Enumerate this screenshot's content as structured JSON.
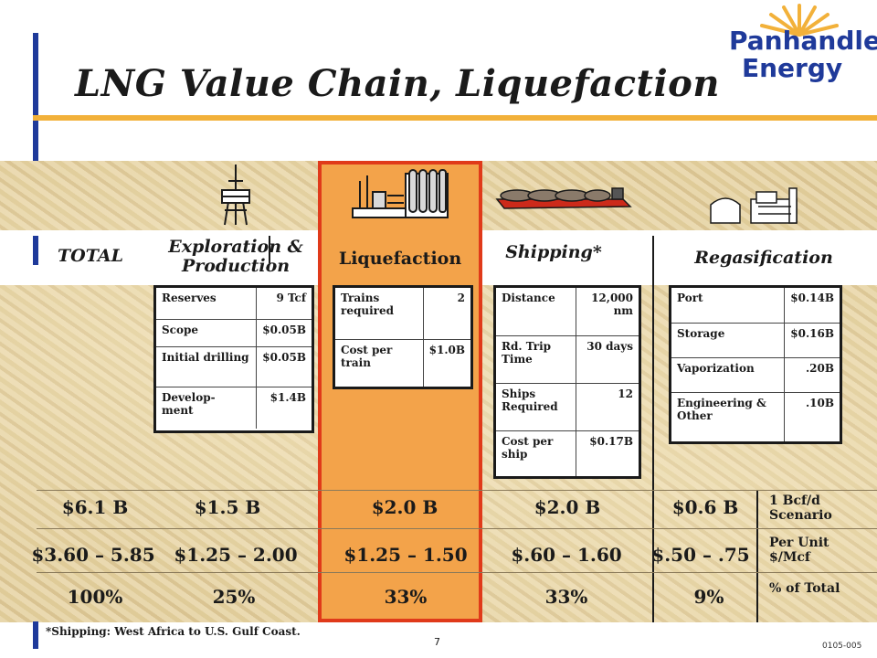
{
  "title": "LNG Value Chain, Liquefaction",
  "logo": {
    "line1": "Panhandle",
    "line2": "Energy"
  },
  "headers": {
    "total": "TOTAL",
    "exploration": "Exploration & Production",
    "liquefaction": "Liquefaction",
    "shipping": "Shipping*",
    "regasification": "Regasification"
  },
  "icons": [
    "oil-derrick-icon",
    "liquefaction-plant-icon",
    "lng-ship-icon",
    "regas-terminal-icon"
  ],
  "exploration_table": [
    {
      "label": "Reserves",
      "value": "9 Tcf"
    },
    {
      "label": "Scope",
      "value": "$0.05B"
    },
    {
      "label": "Initial drilling",
      "value": "$0.05B"
    },
    {
      "label": "Develop- ment",
      "value": "$1.4B"
    }
  ],
  "liquefaction_table": [
    {
      "label": "Trains required",
      "value": "2"
    },
    {
      "label": "Cost per train",
      "value": "$1.0B"
    }
  ],
  "shipping_table": [
    {
      "label": "Distance",
      "value": "12,000 nm"
    },
    {
      "label": "Rd. Trip Time",
      "value": "30 days"
    },
    {
      "label": "Ships Required",
      "value": "12"
    },
    {
      "label": "Cost per ship",
      "value": "$0.17B"
    }
  ],
  "regas_table": [
    {
      "label": "Port",
      "value": "$0.14B"
    },
    {
      "label": "Storage",
      "value": "$0.16B"
    },
    {
      "label": "Vaporization",
      "value": ".20B"
    },
    {
      "label": "Engineering & Other",
      "value": ".10B"
    }
  ],
  "summary_rows": [
    {
      "values": [
        "$6.1 B",
        "$1.5 B",
        "$2.0 B",
        "$2.0 B",
        "$0.6 B"
      ],
      "label": "1 Bcf/d Scenario"
    },
    {
      "values": [
        "$3.60 – 5.85",
        "$1.25 – 2.00",
        "$1.25 – 1.50",
        "$.60 – 1.60",
        "$.50 – .75"
      ],
      "label": "Per Unit $/Mcf"
    },
    {
      "values": [
        "100%",
        "25%",
        "33%",
        "33%",
        "9%"
      ],
      "label": "% of Total"
    }
  ],
  "footnote": "*Shipping: West Africa to U.S. Gulf Coast.",
  "page_number": "7",
  "doc_id": "0105-005",
  "colors": {
    "accent_blue": "#1f3a9a",
    "accent_orange": "#f2b13a",
    "highlight": "#f3a34a",
    "highlight_border": "#e03a1a"
  }
}
